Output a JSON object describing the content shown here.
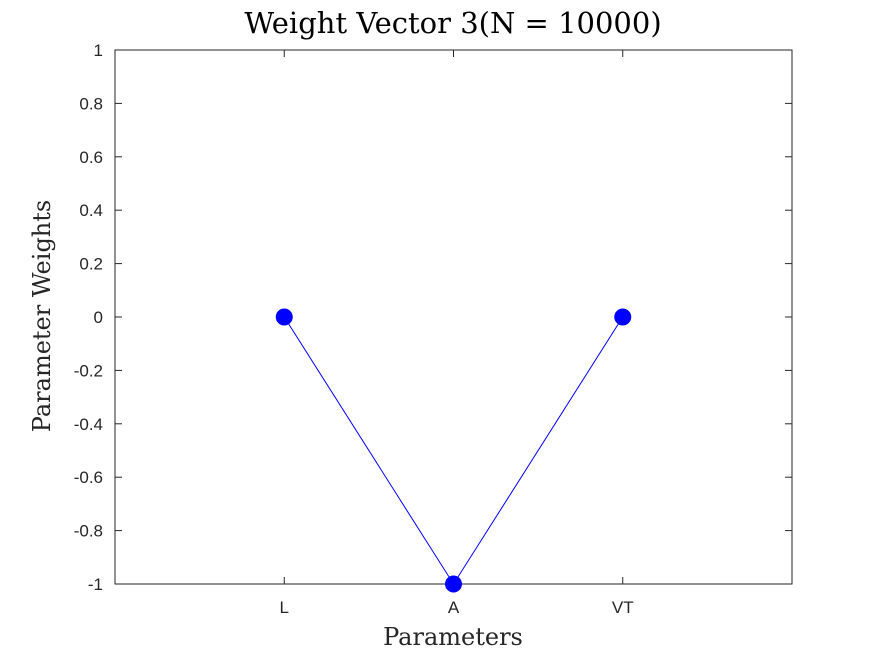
{
  "chart_data": {
    "type": "line",
    "title": "Weight Vector 3(N = 10000)",
    "xlabel": "Parameters",
    "ylabel": "Parameter Weights",
    "categories": [
      "L",
      "A",
      "VT"
    ],
    "x_positions": [
      1,
      2,
      3
    ],
    "xlim": [
      0,
      4
    ],
    "ylim": [
      -1,
      1
    ],
    "yticks": [
      1,
      0.8,
      0.6,
      0.4,
      0.2,
      0,
      -0.2,
      -0.4,
      -0.6,
      -0.8,
      -1
    ],
    "ytick_labels": [
      "1",
      "0.8",
      "0.6",
      "0.4",
      "0.2",
      "0",
      "-0.2",
      "-0.4",
      "-0.6",
      "-0.8",
      "-1"
    ],
    "series": [
      {
        "values": [
          0,
          -1,
          0
        ],
        "color": "#0000ff",
        "marker": "filled-circle"
      }
    ],
    "grid": false,
    "legend": "none",
    "colors": {
      "axis": "#262626",
      "series": "#0000ff",
      "background": "#ffffff"
    }
  }
}
